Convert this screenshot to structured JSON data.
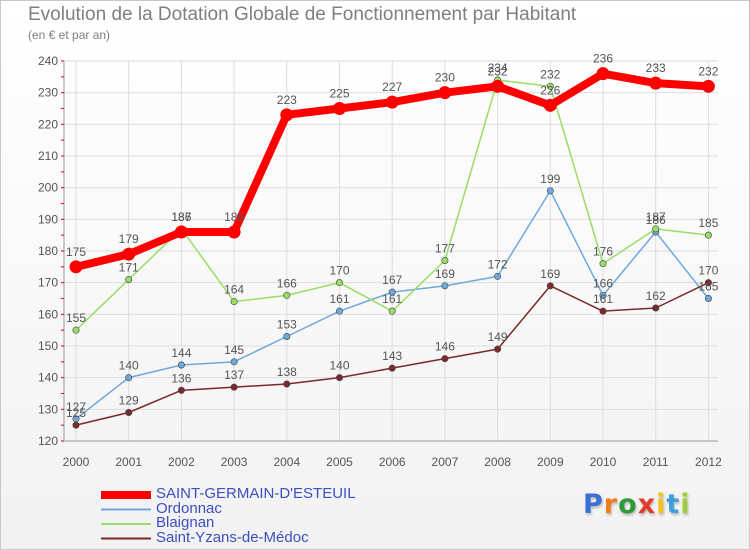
{
  "chart_data": {
    "type": "line",
    "title": "Evolution de la Dotation Globale de Fonctionnement par Habitant",
    "subtitle": "(en € et par an)",
    "xlabel": "",
    "ylabel": "",
    "categories": [
      "2000",
      "2001",
      "2002",
      "2003",
      "2004",
      "2005",
      "2006",
      "2007",
      "2008",
      "2009",
      "2010",
      "2011",
      "2012"
    ],
    "ylim": [
      120,
      240
    ],
    "yticks": [
      120,
      130,
      140,
      150,
      160,
      170,
      180,
      190,
      200,
      210,
      220,
      230,
      240
    ],
    "grid": true,
    "legend_position": "bottom-left",
    "series": [
      {
        "name": "SAINT-GERMAIN-D'ESTEUIL",
        "color": "#ff0000",
        "values": [
          175,
          179,
          186,
          186,
          223,
          225,
          227,
          230,
          232,
          226,
          236,
          233,
          232
        ]
      },
      {
        "name": "Ordonnac",
        "color": "#6fa8dc",
        "values": [
          127,
          140,
          144,
          145,
          153,
          161,
          167,
          169,
          172,
          199,
          166,
          186,
          165
        ]
      },
      {
        "name": "Blaignan",
        "color": "#99dd66",
        "values": [
          155,
          171,
          187,
          164,
          166,
          170,
          161,
          177,
          234,
          232,
          176,
          187,
          185
        ]
      },
      {
        "name": "Saint-Yzans-de-Médoc",
        "color": "#7a2a2a",
        "values": [
          125,
          129,
          136,
          137,
          138,
          140,
          143,
          146,
          149,
          169,
          161,
          162,
          170
        ]
      }
    ]
  },
  "brand": {
    "letters": [
      "P",
      "r",
      "o",
      "x",
      "i",
      "t",
      "i"
    ],
    "colors": [
      "#3c6fd6",
      "#f07d1a",
      "#2f9a3a",
      "#e23b2e",
      "#f0c419",
      "#3ca0dc",
      "#9fce3c"
    ]
  }
}
